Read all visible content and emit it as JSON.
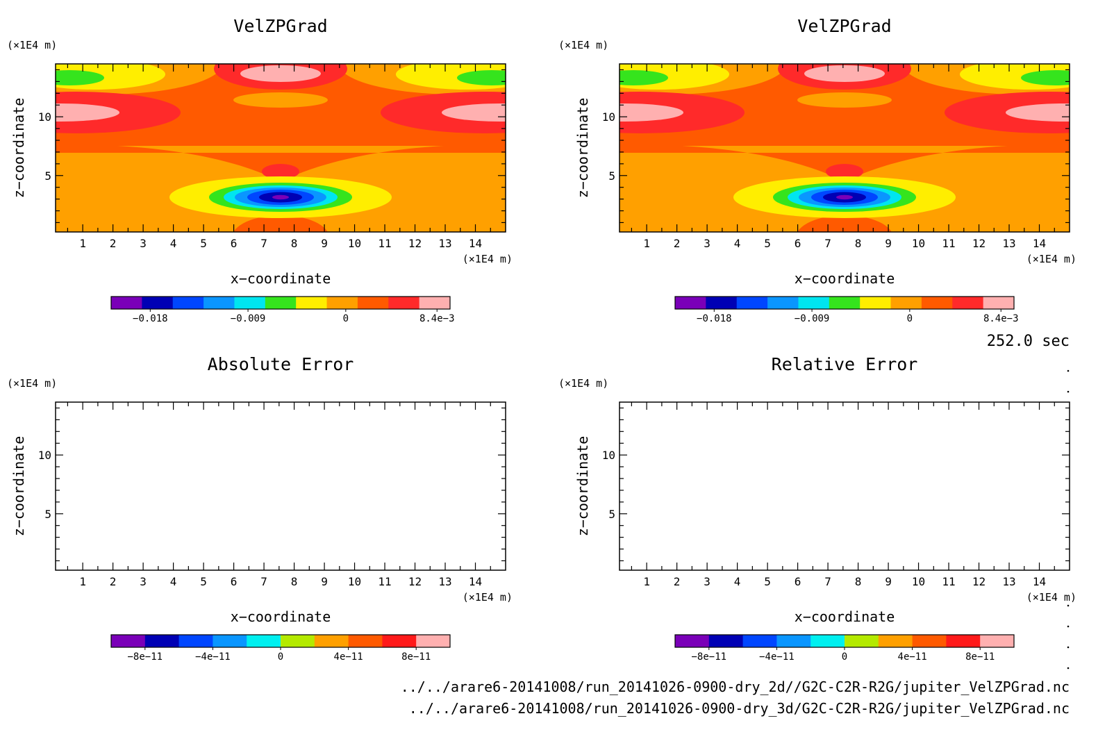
{
  "chart_data": [
    {
      "type": "heatmap",
      "title": "VelZPGrad",
      "xlabel": "x−coordinate",
      "ylabel": "z−coordinate",
      "x_unit": "(×1E4 m)",
      "y_unit": "(×1E4 m)",
      "x_ticks": [
        "1",
        "2",
        "3",
        "4",
        "5",
        "6",
        "7",
        "8",
        "9",
        "10",
        "11",
        "12",
        "13",
        "14"
      ],
      "y_ticks": [
        "5",
        "10"
      ],
      "xlim": [
        0.1,
        15.0
      ],
      "ylim": [
        0.2,
        14.5
      ],
      "colorbar": {
        "colors": [
          "#7a00b8",
          "#0000b4",
          "#0046ff",
          "#0a96ff",
          "#00e5f0",
          "#35e41d",
          "#ffee00",
          "#ffa000",
          "#ff5a00",
          "#ff2a2a",
          "#ffb0b0"
        ],
        "ticks": [
          "−0.018",
          "−0.009",
          "0",
          "8.4e−3"
        ],
        "tick_values": [
          -0.018,
          -0.009,
          0,
          0.0084
        ],
        "range": [
          -0.0216,
          0.0096
        ]
      }
    },
    {
      "type": "heatmap",
      "title": "VelZPGrad",
      "xlabel": "x−coordinate",
      "ylabel": "z−coordinate",
      "x_unit": "(×1E4 m)",
      "y_unit": "(×1E4 m)",
      "x_ticks": [
        "1",
        "2",
        "3",
        "4",
        "5",
        "6",
        "7",
        "8",
        "9",
        "10",
        "11",
        "12",
        "13",
        "14"
      ],
      "y_ticks": [
        "5",
        "10"
      ],
      "xlim": [
        0.1,
        15.0
      ],
      "ylim": [
        0.2,
        14.5
      ],
      "colorbar": {
        "colors": [
          "#7a00b8",
          "#0000b4",
          "#0046ff",
          "#0a96ff",
          "#00e5f0",
          "#35e41d",
          "#ffee00",
          "#ffa000",
          "#ff5a00",
          "#ff2a2a",
          "#ffb0b0"
        ],
        "ticks": [
          "−0.018",
          "−0.009",
          "0",
          "8.4e−3"
        ],
        "tick_values": [
          -0.018,
          -0.009,
          0,
          0.0084
        ],
        "range": [
          -0.0216,
          0.0096
        ]
      }
    },
    {
      "type": "heatmap",
      "title": "Absolute Error",
      "xlabel": "x−coordinate",
      "ylabel": "z−coordinate",
      "x_unit": "(×1E4 m)",
      "y_unit": "(×1E4 m)",
      "x_ticks": [
        "1",
        "2",
        "3",
        "4",
        "5",
        "6",
        "7",
        "8",
        "9",
        "10",
        "11",
        "12",
        "13",
        "14"
      ],
      "y_ticks": [
        "5",
        "10"
      ],
      "xlim": [
        0.1,
        15.0
      ],
      "ylim": [
        0.2,
        14.5
      ],
      "colorbar": {
        "colors": [
          "#7a00b8",
          "#0000b4",
          "#0046ff",
          "#0a96ff",
          "#00f0f0",
          "#b4ea00",
          "#ffa000",
          "#ff5a00",
          "#ff1a1a",
          "#ffb0b0"
        ],
        "ticks": [
          "−8e−11",
          "−4e−11",
          "0",
          "4e−11",
          "8e−11"
        ],
        "tick_values": [
          -8e-11,
          -4e-11,
          0,
          4e-11,
          8e-11
        ],
        "range": [
          -1e-10,
          1e-10
        ]
      }
    },
    {
      "type": "heatmap",
      "title": "Relative Error",
      "xlabel": "x−coordinate",
      "ylabel": "z−coordinate",
      "x_unit": "(×1E4 m)",
      "y_unit": "(×1E4 m)",
      "x_ticks": [
        "1",
        "2",
        "3",
        "4",
        "5",
        "6",
        "7",
        "8",
        "9",
        "10",
        "11",
        "12",
        "13",
        "14"
      ],
      "y_ticks": [
        "5",
        "10"
      ],
      "xlim": [
        0.1,
        15.0
      ],
      "ylim": [
        0.2,
        14.5
      ],
      "colorbar": {
        "colors": [
          "#7a00b8",
          "#0000b4",
          "#0046ff",
          "#0a96ff",
          "#00f0f0",
          "#b4ea00",
          "#ffa000",
          "#ff5a00",
          "#ff1a1a",
          "#ffb0b0"
        ],
        "ticks": [
          "−8e−11",
          "−4e−11",
          "0",
          "4e−11",
          "8e−11"
        ],
        "tick_values": [
          -8e-11,
          -4e-11,
          0,
          4e-11,
          8e-11
        ],
        "range": [
          -1e-10,
          1e-10
        ]
      }
    }
  ],
  "time_label": "252.0 sec",
  "footer_paths": [
    "../../arare6-20141008/run_20141026-0900-dry_2d//G2C-C2R-R2G/jupiter_VelZPGrad.nc",
    "../../arare6-20141008/run_20141026-0900-dry_3d/G2C-C2R-R2G/jupiter_VelZPGrad.nc"
  ]
}
